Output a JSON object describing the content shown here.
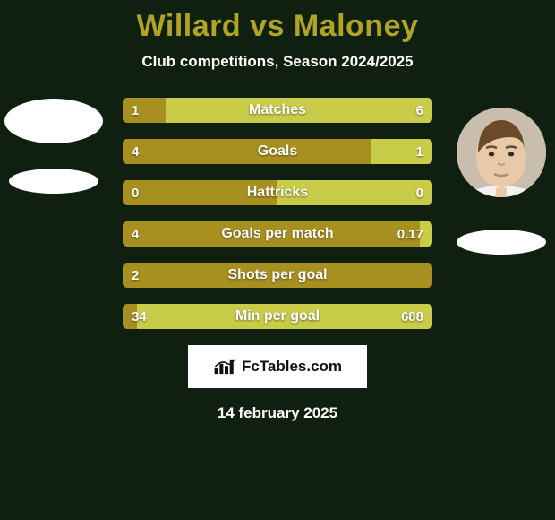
{
  "background_color": "#102010",
  "title": {
    "player_a": "Willard",
    "vs": "vs",
    "player_b": "Maloney",
    "color": "#b1a325"
  },
  "subtitle": "Club competitions, Season 2024/2025",
  "date": "14 february 2025",
  "colors": {
    "bar_a": "#a89020",
    "bar_b": "#c8cc48",
    "text": "#ffffff"
  },
  "stats": [
    {
      "label": "Matches",
      "a": "1",
      "b": "6",
      "pct_a": 14.3
    },
    {
      "label": "Goals",
      "a": "4",
      "b": "1",
      "pct_a": 80.0
    },
    {
      "label": "Hattricks",
      "a": "0",
      "b": "0",
      "pct_a": 50.0
    },
    {
      "label": "Goals per match",
      "a": "4",
      "b": "0.17",
      "pct_a": 95.9
    },
    {
      "label": "Shots per goal",
      "a": "2",
      "b": "",
      "pct_a": 100.0
    },
    {
      "label": "Min per goal",
      "a": "34",
      "b": "688",
      "pct_a": 4.7
    }
  ],
  "logo_text": "FcTables.com",
  "player_b_has_photo": true
}
